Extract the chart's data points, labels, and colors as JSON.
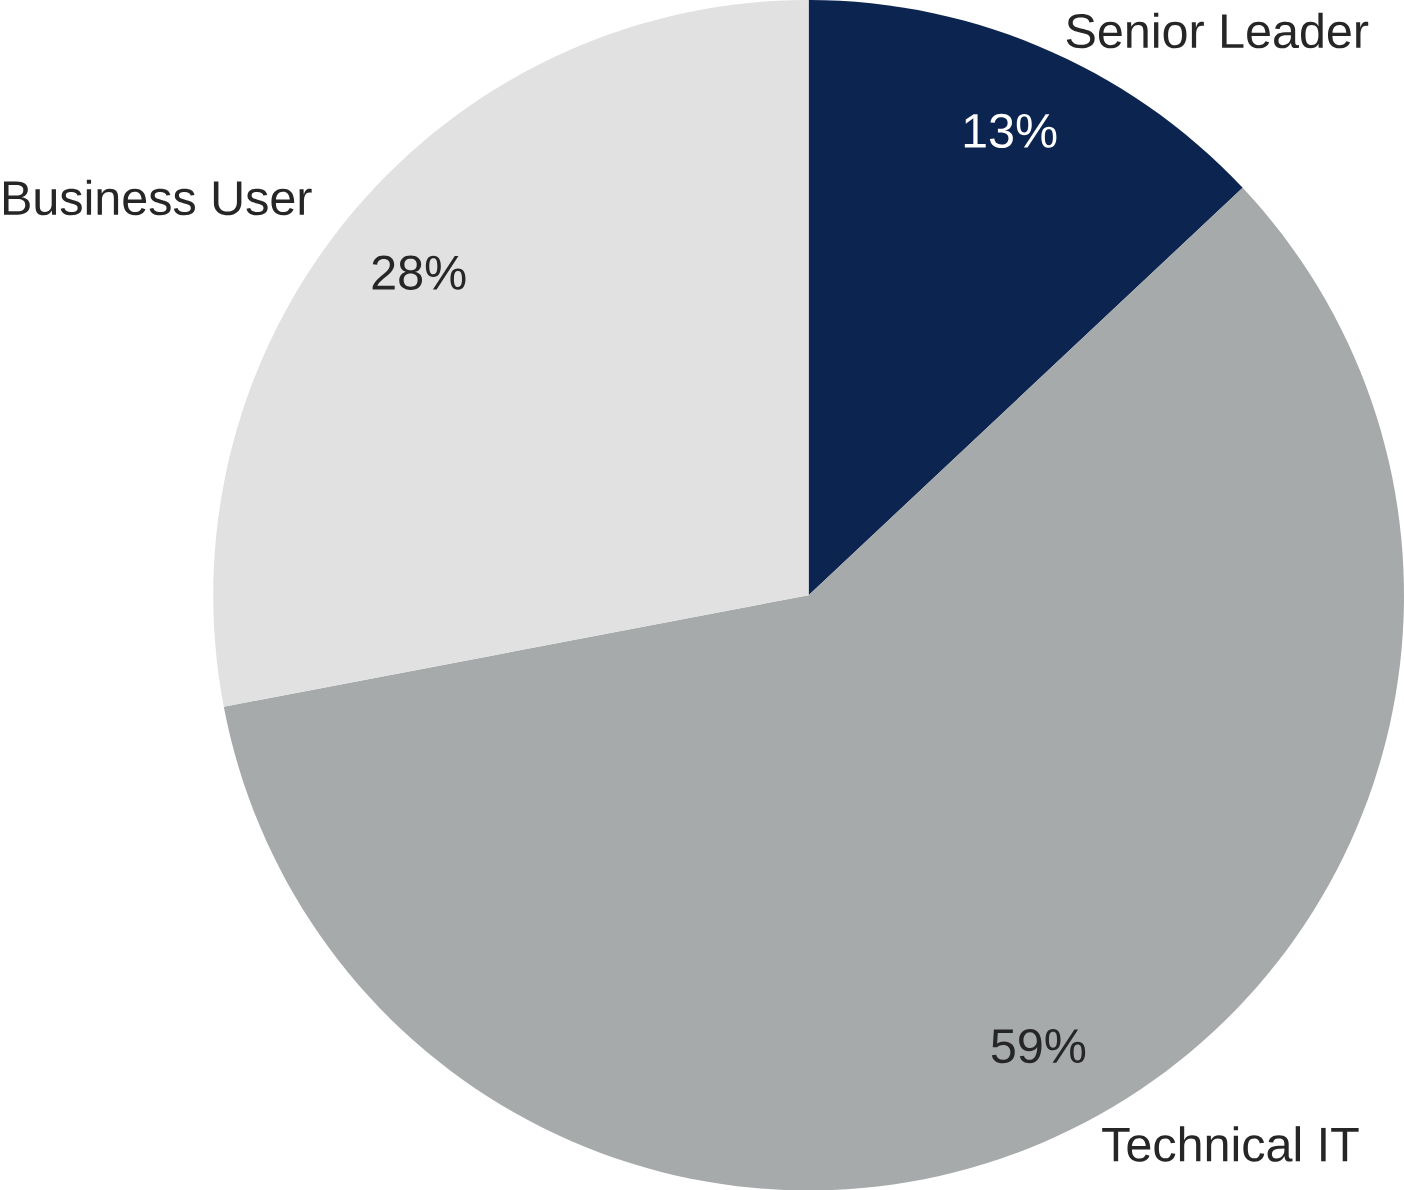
{
  "chart_data": {
    "type": "pie",
    "categories": [
      "Senior Leader",
      "Technical IT",
      "Business User"
    ],
    "values": [
      13,
      59,
      28
    ],
    "colors": [
      "#0c2450",
      "#a6aaaa",
      "#e1e1e1"
    ],
    "value_labels": [
      "13%",
      "59%",
      "28%"
    ]
  }
}
